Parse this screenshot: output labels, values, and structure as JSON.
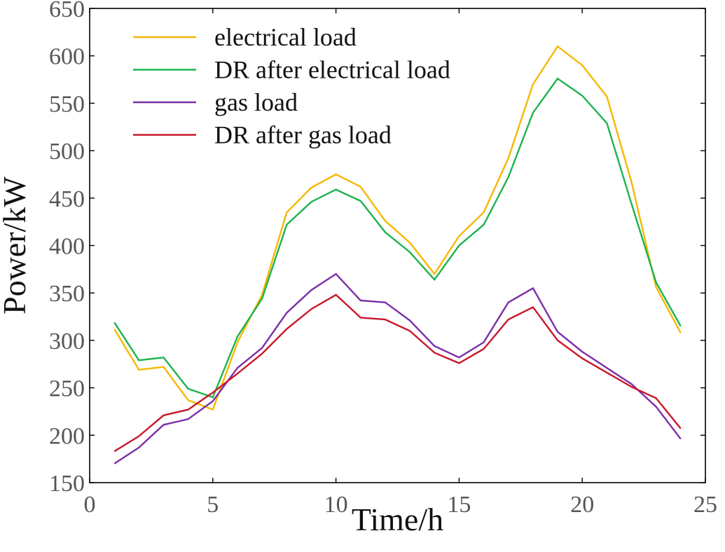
{
  "chart_data": {
    "type": "line",
    "title": "",
    "xlabel": "Time/h",
    "ylabel": "Power/kW",
    "xlim": [
      0,
      25
    ],
    "ylim": [
      150,
      650
    ],
    "xticks": [
      0,
      5,
      10,
      15,
      20,
      25
    ],
    "yticks": [
      150,
      200,
      250,
      300,
      350,
      400,
      450,
      500,
      550,
      600,
      650
    ],
    "grid": false,
    "legend_position": "top-left",
    "x": [
      1,
      2,
      3,
      4,
      5,
      6,
      7,
      8,
      9,
      10,
      11,
      12,
      13,
      14,
      15,
      16,
      17,
      18,
      19,
      20,
      21,
      22,
      23,
      24
    ],
    "series": [
      {
        "name": "electrical load",
        "color": "#F5B800",
        "values": [
          312,
          269,
          272,
          237,
          227,
          298,
          348,
          435,
          461,
          475,
          462,
          426,
          403,
          370,
          410,
          435,
          492,
          570,
          610,
          590,
          557,
          467,
          356,
          308
        ]
      },
      {
        "name": "DR after electrical load",
        "color": "#1DB34D",
        "values": [
          319,
          279,
          282,
          249,
          240,
          304,
          344,
          422,
          446,
          459,
          447,
          414,
          393,
          364,
          400,
          422,
          472,
          540,
          576,
          558,
          529,
          444,
          361,
          315
        ]
      },
      {
        "name": "gas load",
        "color": "#7B2FA8",
        "values": [
          170,
          187,
          211,
          217,
          236,
          271,
          292,
          329,
          353,
          370,
          342,
          340,
          321,
          294,
          282,
          298,
          340,
          355,
          309,
          288,
          271,
          254,
          230,
          196
        ]
      },
      {
        "name": "DR after gas load",
        "color": "#C8182A",
        "values": [
          183,
          199,
          221,
          227,
          245,
          265,
          286,
          312,
          333,
          348,
          324,
          322,
          310,
          287,
          276,
          291,
          322,
          335,
          300,
          281,
          266,
          251,
          239,
          207
        ]
      }
    ]
  }
}
